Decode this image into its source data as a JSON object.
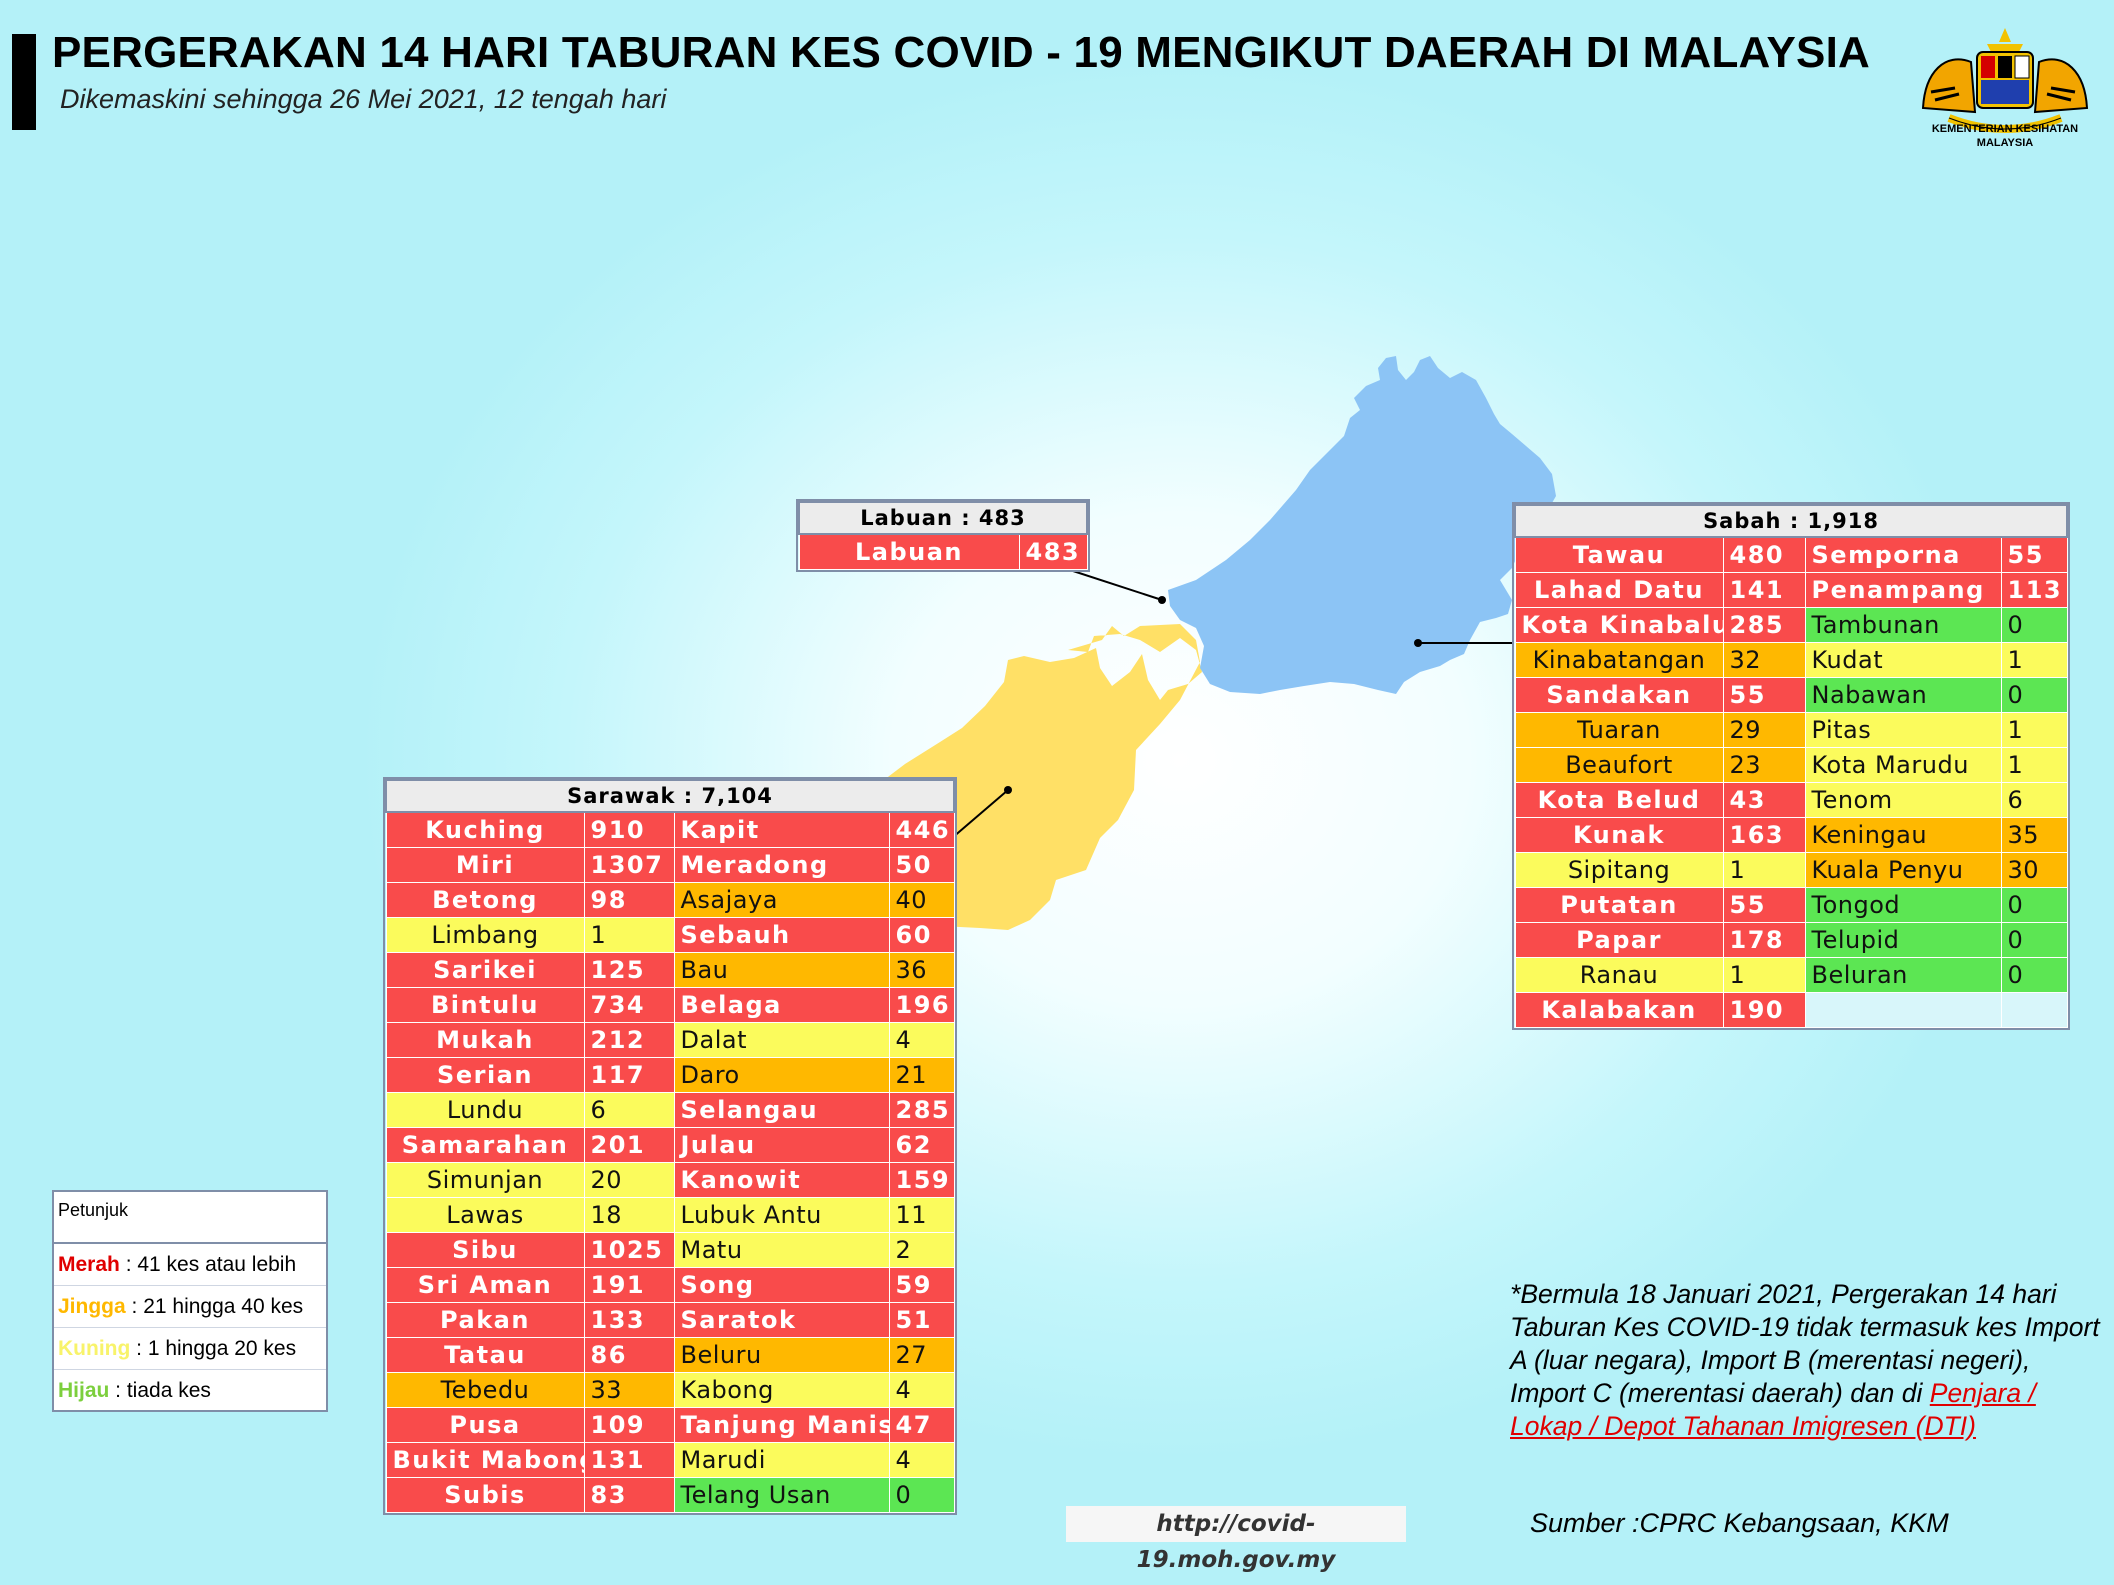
{
  "header": {
    "title": "PERGERAKAN 14 HARI TABURAN KES COVID - 19 MENGIKUT DAERAH DI MALAYSIA",
    "subtitle": "Dikemaskini sehingga 26 Mei 2021, 12 tengah hari"
  },
  "logo": {
    "line1": "KEMENTERIAN KESIHATAN",
    "line2": "MALAYSIA"
  },
  "colors": {
    "merah": "#f94b4b",
    "jingga": "#ffb800",
    "kuning": "#fbfb5c",
    "hijau": "#5ce653",
    "sabah_fill": "#8cc4f5",
    "sarawak_fill": "#ffe066"
  },
  "labuan": {
    "header": "Labuan : 483",
    "rows": [
      {
        "name": "Labuan",
        "value": "483",
        "level": "red"
      }
    ]
  },
  "sabah": {
    "header": "Sabah : 1,918",
    "rows": [
      [
        {
          "name": "Tawau",
          "value": "480",
          "level": "red"
        },
        {
          "name": "Semporna",
          "value": "55",
          "level": "red"
        }
      ],
      [
        {
          "name": "Lahad Datu",
          "value": "141",
          "level": "red"
        },
        {
          "name": "Penampang",
          "value": "113",
          "level": "red"
        }
      ],
      [
        {
          "name": "Kota Kinabalu",
          "value": "285",
          "level": "red"
        },
        {
          "name": "Tambunan",
          "value": "0",
          "level": "green"
        }
      ],
      [
        {
          "name": "Kinabatangan",
          "value": "32",
          "level": "orange"
        },
        {
          "name": "Kudat",
          "value": "1",
          "level": "yellow"
        }
      ],
      [
        {
          "name": "Sandakan",
          "value": "55",
          "level": "red"
        },
        {
          "name": "Nabawan",
          "value": "0",
          "level": "green"
        }
      ],
      [
        {
          "name": "Tuaran",
          "value": "29",
          "level": "orange"
        },
        {
          "name": "Pitas",
          "value": "1",
          "level": "yellow"
        }
      ],
      [
        {
          "name": "Beaufort",
          "value": "23",
          "level": "orange"
        },
        {
          "name": "Kota Marudu",
          "value": "1",
          "level": "yellow"
        }
      ],
      [
        {
          "name": "Kota Belud",
          "value": "43",
          "level": "red"
        },
        {
          "name": "Tenom",
          "value": "6",
          "level": "yellow"
        }
      ],
      [
        {
          "name": "Kunak",
          "value": "163",
          "level": "red"
        },
        {
          "name": "Keningau",
          "value": "35",
          "level": "orange"
        }
      ],
      [
        {
          "name": "Sipitang",
          "value": "1",
          "level": "yellow"
        },
        {
          "name": "Kuala Penyu",
          "value": "30",
          "level": "orange"
        }
      ],
      [
        {
          "name": "Putatan",
          "value": "55",
          "level": "red"
        },
        {
          "name": "Tongod",
          "value": "0",
          "level": "green"
        }
      ],
      [
        {
          "name": "Papar",
          "value": "178",
          "level": "red"
        },
        {
          "name": "Telupid",
          "value": "0",
          "level": "green"
        }
      ],
      [
        {
          "name": "Ranau",
          "value": "1",
          "level": "yellow"
        },
        {
          "name": "Beluran",
          "value": "0",
          "level": "green"
        }
      ],
      [
        {
          "name": "Kalabakan",
          "value": "190",
          "level": "red"
        },
        null
      ]
    ]
  },
  "sarawak": {
    "header": "Sarawak : 7,104",
    "rows": [
      [
        {
          "name": "Kuching",
          "value": "910",
          "level": "red"
        },
        {
          "name": "Kapit",
          "value": "446",
          "level": "red"
        }
      ],
      [
        {
          "name": "Miri",
          "value": "1307",
          "level": "red"
        },
        {
          "name": "Meradong",
          "value": "50",
          "level": "red"
        }
      ],
      [
        {
          "name": "Betong",
          "value": "98",
          "level": "red"
        },
        {
          "name": "Asajaya",
          "value": "40",
          "level": "orange"
        }
      ],
      [
        {
          "name": "Limbang",
          "value": "1",
          "level": "yellow"
        },
        {
          "name": "Sebauh",
          "value": "60",
          "level": "red"
        }
      ],
      [
        {
          "name": "Sarikei",
          "value": "125",
          "level": "red"
        },
        {
          "name": "Bau",
          "value": "36",
          "level": "orange"
        }
      ],
      [
        {
          "name": "Bintulu",
          "value": "734",
          "level": "red"
        },
        {
          "name": "Belaga",
          "value": "196",
          "level": "red"
        }
      ],
      [
        {
          "name": "Mukah",
          "value": "212",
          "level": "red"
        },
        {
          "name": "Dalat",
          "value": "4",
          "level": "yellow"
        }
      ],
      [
        {
          "name": "Serian",
          "value": "117",
          "level": "red"
        },
        {
          "name": "Daro",
          "value": "21",
          "level": "orange"
        }
      ],
      [
        {
          "name": "Lundu",
          "value": "6",
          "level": "yellow"
        },
        {
          "name": "Selangau",
          "value": "285",
          "level": "red"
        }
      ],
      [
        {
          "name": "Samarahan",
          "value": "201",
          "level": "red"
        },
        {
          "name": "Julau",
          "value": "62",
          "level": "red"
        }
      ],
      [
        {
          "name": "Simunjan",
          "value": "20",
          "level": "yellow"
        },
        {
          "name": "Kanowit",
          "value": "159",
          "level": "red"
        }
      ],
      [
        {
          "name": "Lawas",
          "value": "18",
          "level": "yellow"
        },
        {
          "name": "Lubuk Antu",
          "value": "11",
          "level": "yellow"
        }
      ],
      [
        {
          "name": "Sibu",
          "value": "1025",
          "level": "red"
        },
        {
          "name": "Matu",
          "value": "2",
          "level": "yellow"
        }
      ],
      [
        {
          "name": "Sri Aman",
          "value": "191",
          "level": "red"
        },
        {
          "name": "Song",
          "value": "59",
          "level": "red"
        }
      ],
      [
        {
          "name": "Pakan",
          "value": "133",
          "level": "red"
        },
        {
          "name": "Saratok",
          "value": "51",
          "level": "red"
        }
      ],
      [
        {
          "name": "Tatau",
          "value": "86",
          "level": "red"
        },
        {
          "name": "Beluru",
          "value": "27",
          "level": "orange"
        }
      ],
      [
        {
          "name": "Tebedu",
          "value": "33",
          "level": "orange"
        },
        {
          "name": "Kabong",
          "value": "4",
          "level": "yellow"
        }
      ],
      [
        {
          "name": "Pusa",
          "value": "109",
          "level": "red"
        },
        {
          "name": "Tanjung Manis",
          "value": "47",
          "level": "red"
        }
      ],
      [
        {
          "name": "Bukit Mabong",
          "value": "131",
          "level": "red"
        },
        {
          "name": "Marudi",
          "value": "4",
          "level": "yellow"
        }
      ],
      [
        {
          "name": "Subis",
          "value": "83",
          "level": "red"
        },
        {
          "name": "Telang Usan",
          "value": "0",
          "level": "green"
        }
      ]
    ]
  },
  "legend": {
    "title": "Petunjuk",
    "items": [
      {
        "key": "Merah",
        "desc": " : 41 kes atau lebih",
        "color": "#e00000"
      },
      {
        "key": "Jingga",
        "desc": " : 21 hingga 40 kes",
        "color": "#ffb800"
      },
      {
        "key": "Kuning",
        "desc": " : 1 hingga 20 kes",
        "color": "#f8f36a"
      },
      {
        "key": "Hijau",
        "desc": " : tiada kes",
        "color": "#7ccf3d"
      }
    ]
  },
  "note": {
    "text": "*Bermula 18 Januari 2021, Pergerakan 14 hari Taburan Kes COVID-19 tidak termasuk kes Import A (luar negara), Import B (merentasi negeri), Import C (merentasi daerah) dan di ",
    "link_text": "Penjara / Lokap / Depot Tahanan Imigresen (DTI)"
  },
  "url": "http://covid-19.moh.gov.my",
  "source": "Sumber :CPRC Kebangsaan,  KKM"
}
